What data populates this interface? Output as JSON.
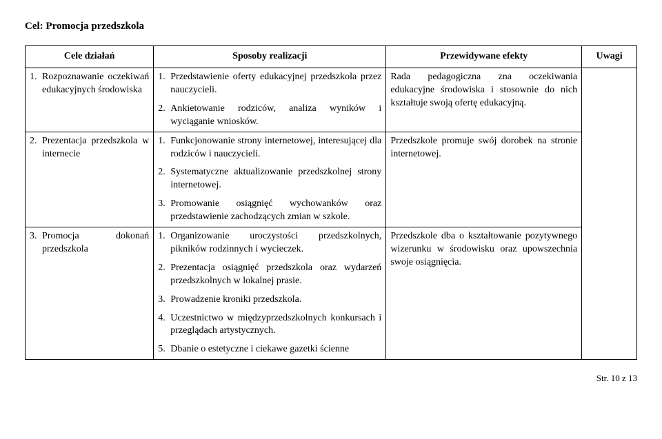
{
  "page": {
    "heading": "Cel: Promocja przedszkola",
    "footer": "Str. 10 z 13",
    "bg": "#ffffff",
    "text_color": "#000000",
    "border_color": "#000000",
    "font_family": "Times New Roman",
    "base_fontsize_pt": 11
  },
  "table": {
    "headers": [
      "Cele działań",
      "Sposoby realizacji",
      "Przewidywane efekty",
      "Uwagi"
    ],
    "col_widths_pct": [
      21,
      38,
      32,
      9
    ],
    "rows": [
      {
        "cele_num": "1.",
        "cele_text": "Rozpoznawanie oczekiwań edukacyjnych środowiska",
        "sposoby": [
          {
            "n": "1.",
            "t": "Przedstawienie oferty edukacyjnej przedszkola przez nauczycieli."
          },
          {
            "n": "2.",
            "t": "Ankietowanie rodziców, analiza wyników i wyciąganie wniosków."
          }
        ],
        "efekty": "Rada pedagogiczna zna oczekiwania edukacyjne środowiska i stosownie do nich kształtuje swoją ofertę edukacyjną.",
        "uwagi": ""
      },
      {
        "cele_num": "2.",
        "cele_text": "Prezentacja przedszkola w internecie",
        "sposoby": [
          {
            "n": "1.",
            "t": "Funkcjonowanie strony internetowej, interesującej dla rodziców i nauczycieli."
          },
          {
            "n": "2.",
            "t": "Systematyczne aktualizowanie przedszkolnej strony internetowej."
          },
          {
            "n": "3.",
            "t": "Promowanie osiągnięć wychowanków oraz przedstawienie zachodzących zmian w szkole."
          }
        ],
        "efekty": "Przedszkole promuje swój dorobek na stronie internetowej.",
        "uwagi": ""
      },
      {
        "cele_num": "3.",
        "cele_text": "Promocja dokonań przedszkola",
        "sposoby": [
          {
            "n": "1.",
            "t": "Organizowanie uroczystości przedszkolnych, pikników rodzinnych i wycieczek."
          },
          {
            "n": "2.",
            "t": "Prezentacja osiągnięć przedszkola oraz wydarzeń przedszkolnych w lokalnej prasie."
          },
          {
            "n": "3.",
            "t": "Prowadzenie kroniki przedszkola."
          },
          {
            "n": "4.",
            "t": "Uczestnictwo w międzyprzedszkolnych konkursach i przeglądach artystycznych."
          },
          {
            "n": "5.",
            "t": "Dbanie o estetyczne i ciekawe gazetki ścienne"
          }
        ],
        "efekty": "Przedszkole dba o kształtowanie pozytywnego wizerunku w środowisku oraz upowszechnia swoje osiągnięcia.",
        "uwagi": ""
      }
    ]
  }
}
